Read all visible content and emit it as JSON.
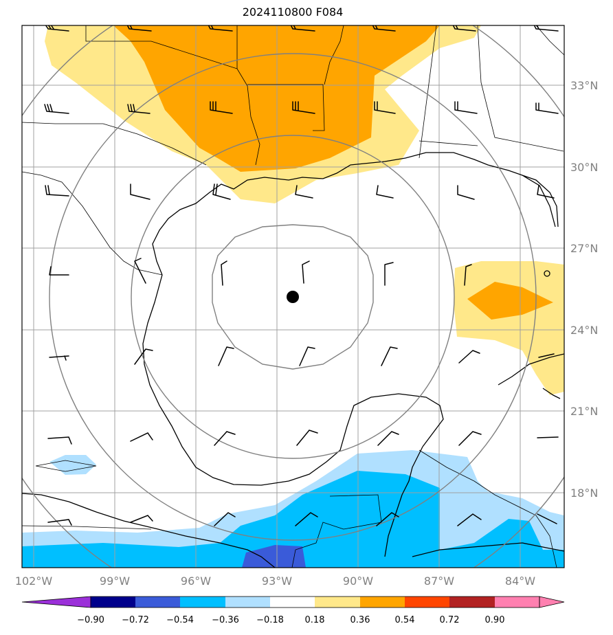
{
  "title": "2024110800 F084",
  "axes": {
    "lon_ticks": [
      "102°W",
      "99°W",
      "96°W",
      "93°W",
      "90°W",
      "87°W",
      "84°W"
    ],
    "lon_values": [
      -102,
      -99,
      -96,
      -93,
      -90,
      -87,
      -84
    ],
    "lat_ticks": [
      "18°N",
      "21°N",
      "24°N",
      "27°N",
      "30°N",
      "33°N"
    ],
    "lat_values": [
      18,
      21,
      24,
      27,
      30,
      33
    ],
    "lon_range": [
      -102.4,
      -82.4
    ],
    "lat_range": [
      15.0,
      35.0
    ],
    "grid": true
  },
  "storm_center": {
    "lon": -92.5,
    "lat": 25.2
  },
  "range_rings_count": 4,
  "colorbar": {
    "tick_labels": [
      "−0.90",
      "−0.72",
      "−0.54",
      "−0.36",
      "−0.18",
      "0.18",
      "0.36",
      "0.54",
      "0.72",
      "0.90"
    ],
    "colors": [
      "#9b30d9",
      "#00008b",
      "#3a5bd9",
      "#00bfff",
      "#b0e0ff",
      "#ffffff",
      "#ffe88a",
      "#ffa500",
      "#ff4500",
      "#b22222",
      "#ff80b0"
    ],
    "extend": "both"
  },
  "colors": {
    "light_yellow": "#ffe88a",
    "orange": "#ffa500",
    "light_blue": "#b0e0ff",
    "deep_sky": "#00bfff",
    "royal_blue": "#3a5bd9",
    "grid": "#a0a0a0",
    "rings": "#808080"
  }
}
